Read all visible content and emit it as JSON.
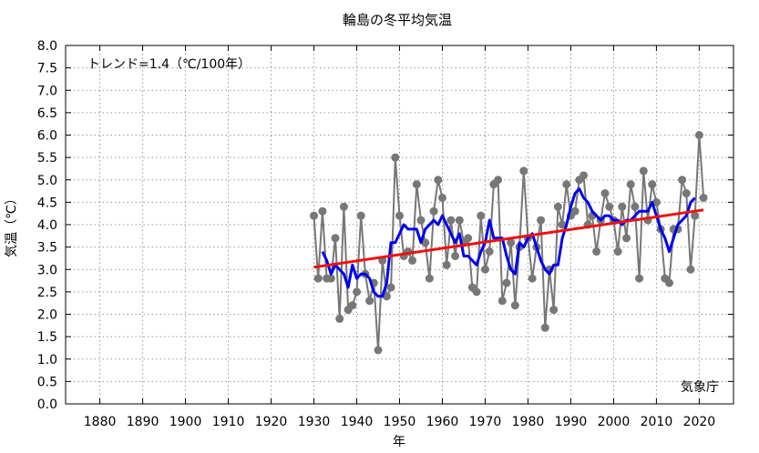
{
  "chart_data": {
    "type": "line",
    "title": "輪島の冬平均気温",
    "xlabel": "年",
    "ylabel": "気温（℃）",
    "xlim": [
      1872,
      2028
    ],
    "ylim": [
      0.0,
      8.0
    ],
    "x_ticks": [
      "1880",
      "1890",
      "1900",
      "1910",
      "1920",
      "1930",
      "1940",
      "1950",
      "1960",
      "1970",
      "1980",
      "1990",
      "2000",
      "2010",
      "2020"
    ],
    "y_ticks": [
      "0.0",
      "0.5",
      "1.0",
      "1.5",
      "2.0",
      "2.5",
      "3.0",
      "3.5",
      "4.0",
      "4.5",
      "5.0",
      "5.5",
      "6.0",
      "6.5",
      "7.0",
      "7.5",
      "8.0"
    ],
    "grid": true,
    "trend_label": "トレンド=1.4（℃/100年）",
    "source_label": "気象庁",
    "colors": {
      "annual": "#777777",
      "moving_average": "#0000ee",
      "trend": "#ee1111",
      "grid": "#999999"
    },
    "series": [
      {
        "style": "gray-line-with-markers",
        "x": [
          1930,
          1931,
          1932,
          1933,
          1934,
          1935,
          1936,
          1937,
          1938,
          1939,
          1940,
          1941,
          1942,
          1943,
          1944,
          1945,
          1946,
          1947,
          1948,
          1949,
          1950,
          1951,
          1952,
          1953,
          1954,
          1955,
          1956,
          1957,
          1958,
          1959,
          1960,
          1961,
          1962,
          1963,
          1964,
          1965,
          1966,
          1967,
          1968,
          1969,
          1970,
          1971,
          1972,
          1973,
          1974,
          1975,
          1976,
          1977,
          1978,
          1979,
          1980,
          1981,
          1982,
          1983,
          1984,
          1985,
          1986,
          1987,
          1988,
          1989,
          1990,
          1991,
          1992,
          1993,
          1994,
          1995,
          1996,
          1997,
          1998,
          1999,
          2000,
          2001,
          2002,
          2003,
          2004,
          2005,
          2006,
          2007,
          2008,
          2009,
          2010,
          2011,
          2012,
          2013,
          2014,
          2015,
          2016,
          2017,
          2018,
          2019,
          2020,
          2021
        ],
        "values": [
          4.2,
          2.8,
          4.3,
          2.8,
          2.8,
          3.7,
          1.9,
          4.4,
          2.1,
          2.2,
          2.5,
          4.2,
          2.9,
          2.3,
          2.7,
          1.2,
          3.2,
          2.4,
          2.6,
          5.5,
          4.2,
          3.3,
          3.4,
          3.2,
          4.9,
          4.1,
          3.6,
          2.8,
          4.3,
          5.0,
          4.6,
          3.1,
          4.1,
          3.3,
          4.1,
          3.6,
          3.7,
          2.6,
          2.5,
          4.2,
          3.0,
          3.4,
          4.9,
          5.0,
          2.3,
          2.7,
          3.6,
          2.2,
          3.5,
          5.2,
          3.7,
          2.8,
          3.5,
          4.1,
          1.7,
          3.0,
          2.1,
          4.4,
          4.0,
          4.9,
          4.2,
          4.3,
          5.0,
          5.1,
          4.0,
          4.2,
          3.4,
          4.1,
          4.7,
          4.4,
          4.1,
          3.4,
          4.4,
          3.7,
          4.9,
          4.4,
          2.8,
          5.2,
          4.1,
          4.9,
          4.5,
          3.9,
          2.8,
          2.7,
          3.9,
          3.9,
          5.0,
          4.7,
          3.0,
          4.2,
          6.0,
          4.6
        ]
      },
      {
        "style": "blue-moving-average",
        "x": [
          1932,
          1933,
          1934,
          1935,
          1936,
          1937,
          1938,
          1939,
          1940,
          1941,
          1942,
          1943,
          1944,
          1945,
          1946,
          1947,
          1948,
          1949,
          1950,
          1951,
          1952,
          1953,
          1954,
          1955,
          1956,
          1957,
          1958,
          1959,
          1960,
          1961,
          1962,
          1963,
          1964,
          1965,
          1966,
          1967,
          1968,
          1969,
          1970,
          1971,
          1972,
          1973,
          1974,
          1975,
          1976,
          1977,
          1978,
          1979,
          1980,
          1981,
          1982,
          1983,
          1984,
          1985,
          1986,
          1987,
          1988,
          1989,
          1990,
          1991,
          1992,
          1993,
          1994,
          1995,
          1996,
          1997,
          1998,
          1999,
          2000,
          2001,
          2002,
          2003,
          2004,
          2005,
          2006,
          2007,
          2008,
          2009,
          2010,
          2011,
          2012,
          2013,
          2014,
          2015,
          2016,
          2017,
          2018,
          2019
        ],
        "values": [
          3.4,
          3.2,
          2.9,
          3.1,
          3.0,
          2.9,
          2.6,
          3.1,
          2.8,
          2.9,
          2.9,
          2.8,
          2.5,
          2.4,
          2.4,
          2.7,
          3.6,
          3.6,
          3.8,
          4.0,
          3.9,
          3.9,
          3.9,
          3.6,
          3.9,
          4.0,
          4.1,
          4.0,
          4.2,
          4.0,
          3.8,
          3.6,
          3.8,
          3.3,
          3.3,
          3.2,
          3.1,
          3.4,
          3.6,
          4.1,
          3.7,
          3.7,
          3.7,
          3.3,
          3.0,
          2.9,
          3.6,
          3.5,
          3.7,
          3.8,
          3.5,
          3.2,
          3.0,
          2.9,
          3.1,
          3.1,
          3.7,
          4.0,
          4.4,
          4.7,
          4.8,
          4.6,
          4.5,
          4.3,
          4.2,
          4.1,
          4.2,
          4.2,
          4.1,
          4.1,
          4.0,
          4.1,
          4.1,
          4.2,
          4.3,
          4.3,
          4.3,
          4.5,
          4.2,
          3.9,
          3.7,
          3.4,
          3.7,
          4.0,
          4.1,
          4.2,
          4.5,
          4.6
        ]
      },
      {
        "style": "red-trend-line",
        "x": [
          1930,
          2021
        ],
        "values": [
          3.05,
          4.33
        ]
      }
    ]
  }
}
